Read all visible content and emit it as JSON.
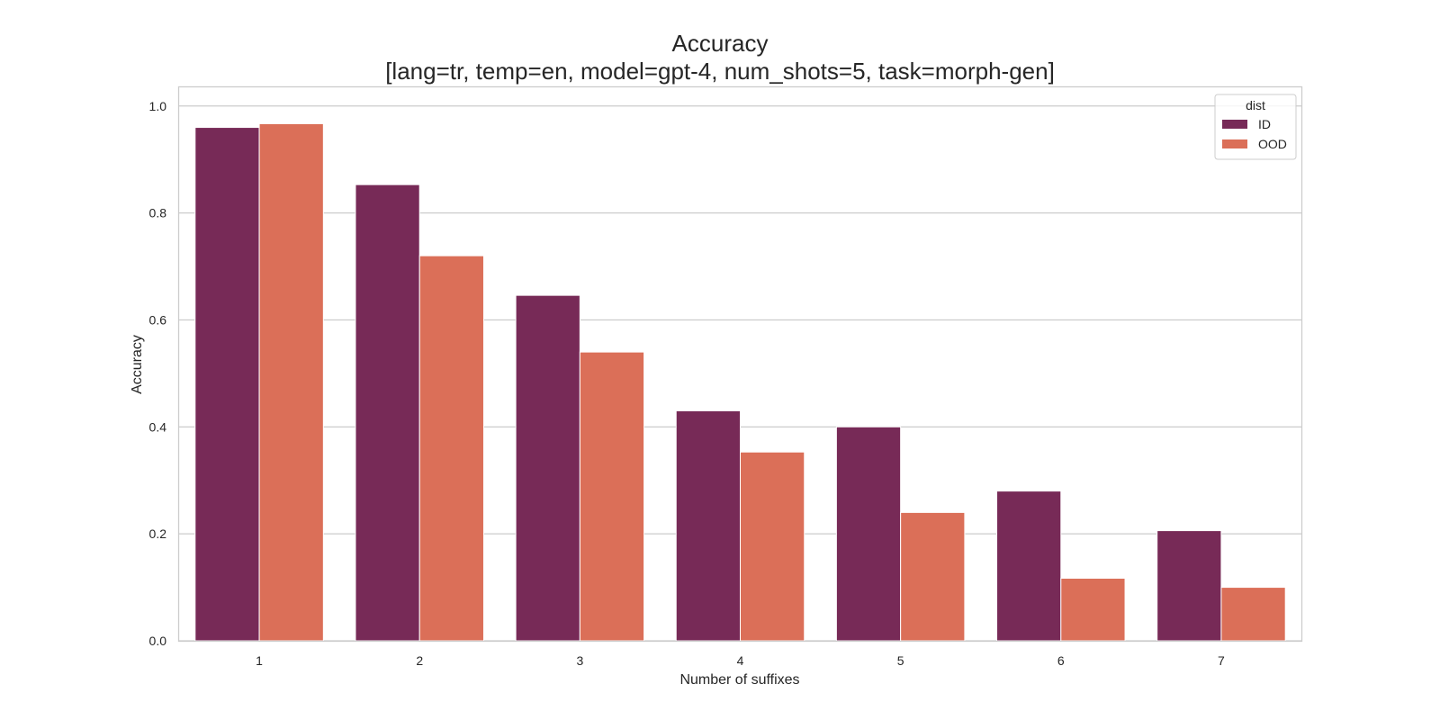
{
  "colors": {
    "background": "#ffffff",
    "grid": "#cccccc",
    "frame": "#cccccc",
    "id_series": "#772a57",
    "ood_series": "#db6f58"
  },
  "chart_data": {
    "type": "bar",
    "title": "Accuracy",
    "subtitle": "[lang=tr, temp=en, model=gpt-4, num_shots=5, task=morph-gen]",
    "xlabel": "Number of suffixes",
    "ylabel": "Accuracy",
    "categories": [
      "1",
      "2",
      "3",
      "4",
      "5",
      "6",
      "7"
    ],
    "series": [
      {
        "name": "ID",
        "color": "#772a57",
        "values": [
          0.96,
          0.853,
          0.646,
          0.43,
          0.4,
          0.28,
          0.206
        ]
      },
      {
        "name": "OOD",
        "color": "#db6f58",
        "values": [
          0.967,
          0.72,
          0.54,
          0.353,
          0.24,
          0.117,
          0.1
        ]
      }
    ],
    "ylim": [
      0,
      1.0
    ],
    "yticks": [
      "0.0",
      "0.2",
      "0.4",
      "0.6",
      "0.8",
      "1.0"
    ],
    "ytick_values": [
      0,
      0.2,
      0.4,
      0.6,
      0.8,
      1.0
    ],
    "grid": true,
    "legend": {
      "title": "dist",
      "placement": "top-right"
    }
  }
}
